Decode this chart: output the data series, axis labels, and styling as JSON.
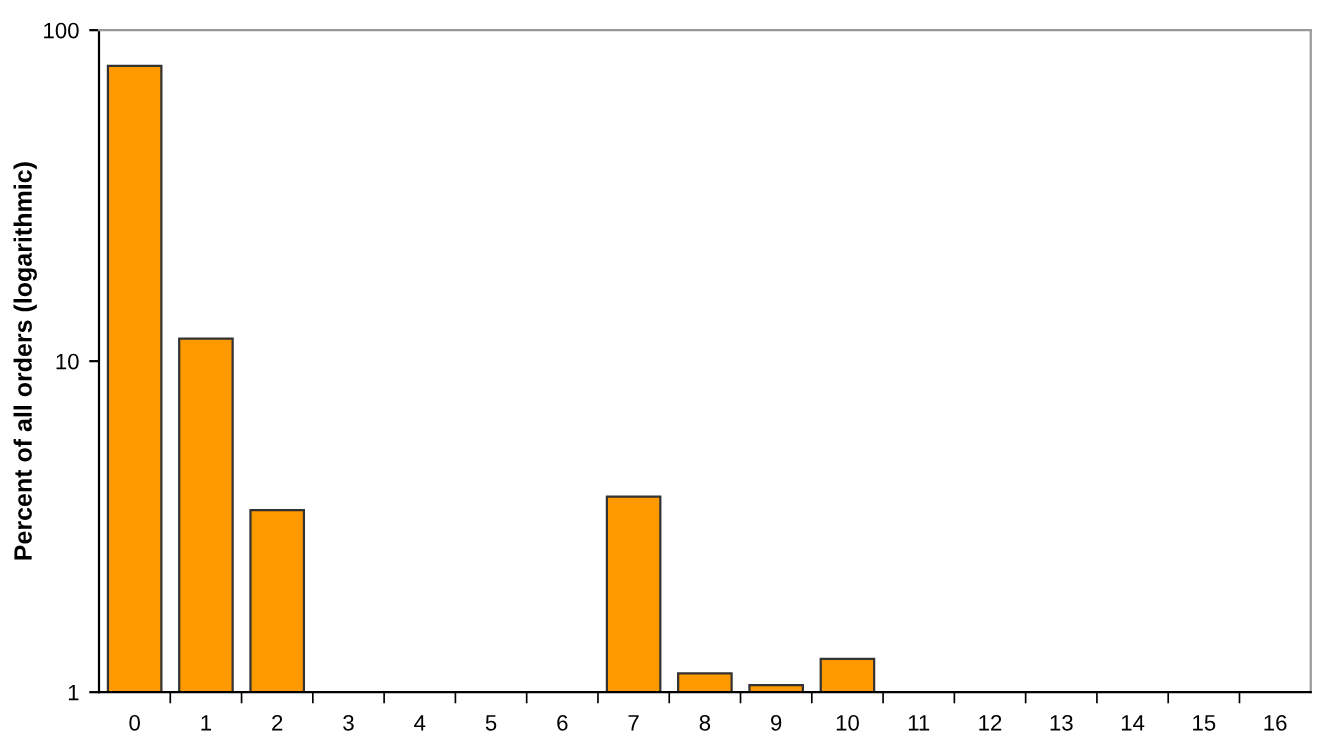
{
  "chart_data": {
    "type": "bar",
    "ylabel": "Percent of all orders (logarithmic)",
    "categories": [
      "0",
      "1",
      "2",
      "3",
      "4",
      "5",
      "6",
      "7",
      "8",
      "9",
      "10",
      "11",
      "12",
      "13",
      "14",
      "15",
      "16"
    ],
    "values": [
      78,
      11.7,
      3.55,
      null,
      null,
      null,
      null,
      3.9,
      1.14,
      1.05,
      1.26,
      null,
      null,
      null,
      null,
      null,
      null
    ],
    "color": "#ff9900",
    "log": true,
    "ylim": [
      1,
      100
    ],
    "yticks": [
      1,
      10,
      100
    ],
    "grid": false
  }
}
